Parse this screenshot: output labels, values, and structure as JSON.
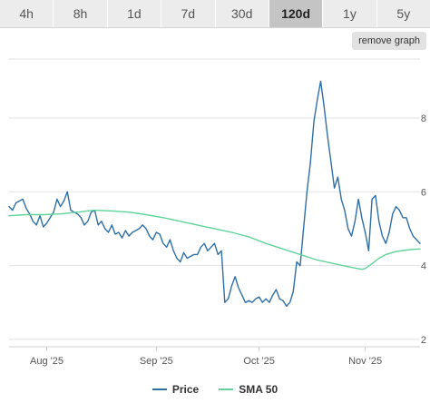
{
  "tabs": [
    {
      "label": "4h",
      "active": false
    },
    {
      "label": "8h",
      "active": false
    },
    {
      "label": "1d",
      "active": false
    },
    {
      "label": "7d",
      "active": false
    },
    {
      "label": "30d",
      "active": false
    },
    {
      "label": "120d",
      "active": true
    },
    {
      "label": "1y",
      "active": false
    },
    {
      "label": "5y",
      "active": false
    }
  ],
  "remove_graph_label": "remove graph",
  "legend": {
    "price_label": "Price",
    "sma_label": "SMA 50"
  },
  "colors": {
    "price": "#2f6fa5",
    "sma": "#5fd39a",
    "grid": "#e3e3e3",
    "axis_text": "#555555"
  },
  "chart_data": {
    "type": "line",
    "title": "",
    "xlabel": "",
    "ylabel": "",
    "ylim": [
      1.8,
      9.6
    ],
    "yticks": [
      2,
      4,
      6,
      8
    ],
    "xlim": [
      0,
      120
    ],
    "xticks": [
      {
        "day": 11,
        "label": "Aug '25"
      },
      {
        "day": 43,
        "label": "Sep '25"
      },
      {
        "day": 73,
        "label": "Oct '25"
      },
      {
        "day": 104,
        "label": "Nov '25"
      }
    ],
    "grid": true,
    "legend_position": "bottom-center",
    "series": [
      {
        "name": "Price",
        "color": "#2f6fa5",
        "x": [
          0,
          1,
          2,
          3,
          4,
          5,
          6,
          7,
          8,
          9,
          10,
          11,
          12,
          13,
          14,
          15,
          16,
          17,
          18,
          19,
          20,
          21,
          22,
          23,
          24,
          25,
          26,
          27,
          28,
          29,
          30,
          31,
          32,
          33,
          34,
          35,
          36,
          37,
          38,
          39,
          40,
          41,
          42,
          43,
          44,
          45,
          46,
          47,
          48,
          49,
          50,
          51,
          52,
          53,
          54,
          55,
          56,
          57,
          58,
          59,
          60,
          61,
          62,
          63,
          64,
          65,
          66,
          67,
          68,
          69,
          70,
          71,
          72,
          73,
          74,
          75,
          76,
          77,
          78,
          79,
          80,
          81,
          82,
          83,
          84,
          85,
          86,
          87,
          88,
          89,
          90,
          91,
          92,
          93,
          94,
          95,
          96,
          97,
          98,
          99,
          100,
          101,
          102,
          103,
          104,
          105,
          106,
          107,
          108,
          109,
          110,
          111,
          112,
          113,
          114,
          115,
          116,
          117,
          118,
          119,
          120
        ],
        "values": [
          5.6,
          5.5,
          5.7,
          5.75,
          5.8,
          5.55,
          5.4,
          5.2,
          5.1,
          5.35,
          5.05,
          5.15,
          5.3,
          5.45,
          5.8,
          5.6,
          5.75,
          6.0,
          5.5,
          5.45,
          5.4,
          5.3,
          5.1,
          5.2,
          5.45,
          5.5,
          5.1,
          5.2,
          5.0,
          4.9,
          5.1,
          4.85,
          4.9,
          4.75,
          4.95,
          4.8,
          4.9,
          4.95,
          5.0,
          5.1,
          5.0,
          4.8,
          4.7,
          4.9,
          4.85,
          4.6,
          4.5,
          4.7,
          4.4,
          4.2,
          4.1,
          4.35,
          4.2,
          4.25,
          4.3,
          4.3,
          4.5,
          4.6,
          4.4,
          4.5,
          4.6,
          4.3,
          4.4,
          3.0,
          3.1,
          3.45,
          3.7,
          3.4,
          3.2,
          3.0,
          3.05,
          3.0,
          3.1,
          3.15,
          3.0,
          3.1,
          3.0,
          3.2,
          3.35,
          3.1,
          3.05,
          2.9,
          3.0,
          3.3,
          4.1,
          4.0,
          5.0,
          6.0,
          6.8,
          7.9,
          8.5,
          9.0,
          8.3,
          7.5,
          6.8,
          6.1,
          6.4,
          5.8,
          5.5,
          5.0,
          4.8,
          5.2,
          5.8,
          5.3,
          4.9,
          4.4,
          5.8,
          5.9,
          5.2,
          4.8,
          4.6,
          4.9,
          5.4,
          5.6,
          5.5,
          5.3,
          5.3,
          5.0,
          4.8,
          4.7,
          4.6
        ],
        "values_note": ""
      },
      {
        "name": "SMA 50",
        "color": "#5fd39a",
        "x": [
          0,
          5,
          10,
          15,
          20,
          25,
          30,
          35,
          40,
          45,
          50,
          55,
          60,
          65,
          70,
          75,
          80,
          85,
          90,
          95,
          100,
          103,
          104,
          106,
          108,
          110,
          113,
          116,
          118,
          120
        ],
        "values": [
          5.35,
          5.38,
          5.38,
          5.4,
          5.45,
          5.5,
          5.48,
          5.45,
          5.38,
          5.3,
          5.2,
          5.1,
          5.0,
          4.9,
          4.78,
          4.6,
          4.45,
          4.3,
          4.15,
          4.05,
          3.95,
          3.9,
          3.92,
          4.05,
          4.2,
          4.3,
          4.38,
          4.42,
          4.44,
          4.45
        ],
        "values_note": ""
      }
    ]
  }
}
